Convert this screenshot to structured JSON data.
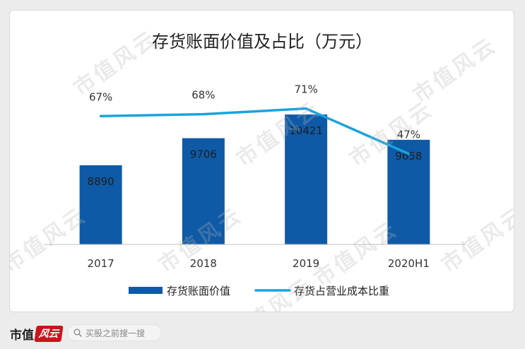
{
  "chart_data": {
    "type": "bar",
    "title": "存货账面价值及占比（万元）",
    "categories": [
      "2017",
      "2018",
      "2019",
      "2020H1"
    ],
    "series": [
      {
        "name": "存货账面价值",
        "type": "bar",
        "values": [
          8890,
          9706,
          10421,
          9658
        ],
        "labels": [
          "8890",
          "9706",
          "10421",
          "9658"
        ],
        "color": "#0e5aa7"
      },
      {
        "name": "存货占营业成本比重",
        "type": "line",
        "values": [
          67,
          68,
          71,
          47
        ],
        "labels": [
          "67%",
          "68%",
          "71%",
          "47%"
        ],
        "color": "#1aa3de"
      }
    ],
    "ylim": [
      6500,
      10700
    ],
    "y2lim": [
      0,
      90
    ],
    "legend_position": "bottom",
    "grid": false
  },
  "watermark": {
    "text": "市值风云"
  },
  "footer": {
    "brand_text": "市值",
    "brand_mark": "风云",
    "search_placeholder": "买股之前搜一搜"
  },
  "colors": {
    "bar": "#0e5aa7",
    "line": "#1aa3de"
  }
}
